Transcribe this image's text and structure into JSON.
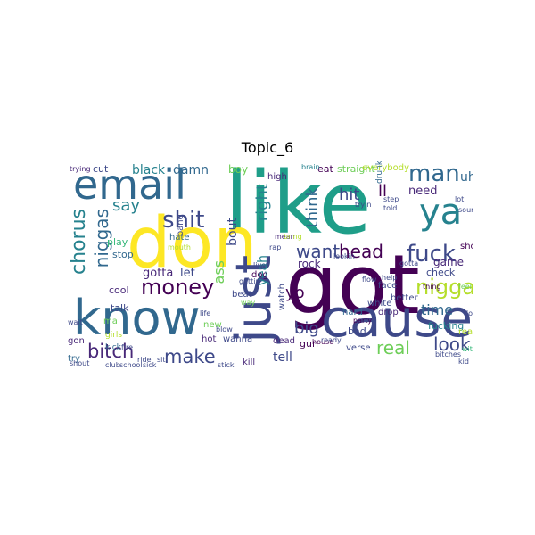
{
  "title": "Topic_6",
  "words": [
    "like",
    "got",
    "don",
    "know",
    "cause",
    "just",
    "email",
    "ya",
    "fuck",
    "man",
    "nigga",
    "chorus",
    "money",
    "shit",
    "niggas",
    "bitch",
    "make",
    "say",
    "want",
    "head",
    "think",
    "right",
    "hit",
    "ll",
    "uh",
    "need",
    "look",
    "real",
    "big",
    "yo",
    "game",
    "time",
    "tell",
    "ass",
    "yeah",
    "bout",
    "gotta",
    "let",
    "black",
    "damn",
    "boy",
    "play",
    "cool",
    "stop",
    "talk",
    "gon",
    "try",
    "check",
    "fucking",
    "really",
    "white",
    "drop",
    "hard",
    "verse",
    "bad",
    "gun",
    "kill",
    "dead",
    "new",
    "hot",
    "wanna",
    "rock",
    "high",
    "eat",
    "straight",
    "everybody",
    "drunk",
    "better",
    "face",
    "shot",
    "watch",
    "beat",
    "ma",
    "hate",
    "girls",
    "kick",
    "cut",
    "trying",
    "brain",
    "mean",
    "bang",
    "dog",
    "thing",
    "house",
    "party",
    "feel",
    "club",
    "school",
    "sick",
    "ready",
    "kid",
    "wit",
    "lookin",
    "rap",
    "bring",
    "step",
    "told",
    "lot",
    "sound",
    "tryin",
    "bitches",
    "mouth",
    "gettin",
    "way",
    "fire",
    "double",
    "blow",
    "shout",
    "stick",
    "live",
    "flow",
    "life",
    "ride",
    "sit",
    "help",
    "wait",
    "gotta"
  ],
  "palette": [
    "#440154",
    "#482878",
    "#3e4989",
    "#31688e",
    "#26828e",
    "#1f9e89",
    "#35b779",
    "#6ece58",
    "#b5de2b",
    "#fde725"
  ]
}
